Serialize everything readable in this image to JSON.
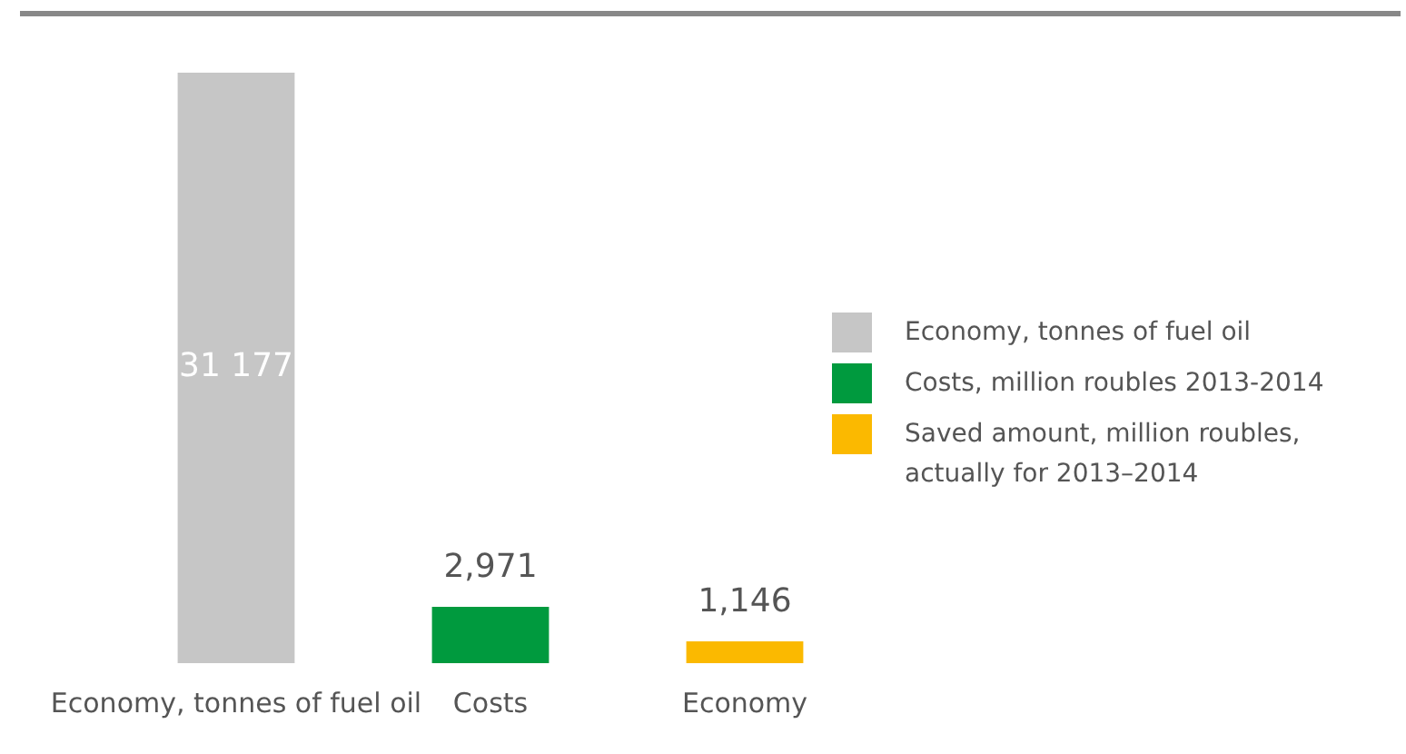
{
  "chart_data": {
    "type": "bar",
    "categories": [
      "Economy, tonnes of fuel oil",
      "Costs",
      "Economy"
    ],
    "series": [
      {
        "name": "Economy, tonnes of fuel oil",
        "color": "#c6c6c6",
        "values": [
          31177,
          null,
          null
        ],
        "value_labels": [
          "31 177",
          null,
          null
        ]
      },
      {
        "name": "Costs, million roubles 2013-2014",
        "color": "#009a3e",
        "values": [
          null,
          2971,
          null
        ],
        "value_labels": [
          null,
          "2,971",
          null
        ]
      },
      {
        "name": "Saved amount, million roubles, actually for 2013–2014",
        "color": "#fbb900",
        "values": [
          null,
          null,
          1146
        ],
        "value_labels": [
          null,
          null,
          "1,146"
        ]
      }
    ],
    "legend": "right",
    "grid": false
  }
}
